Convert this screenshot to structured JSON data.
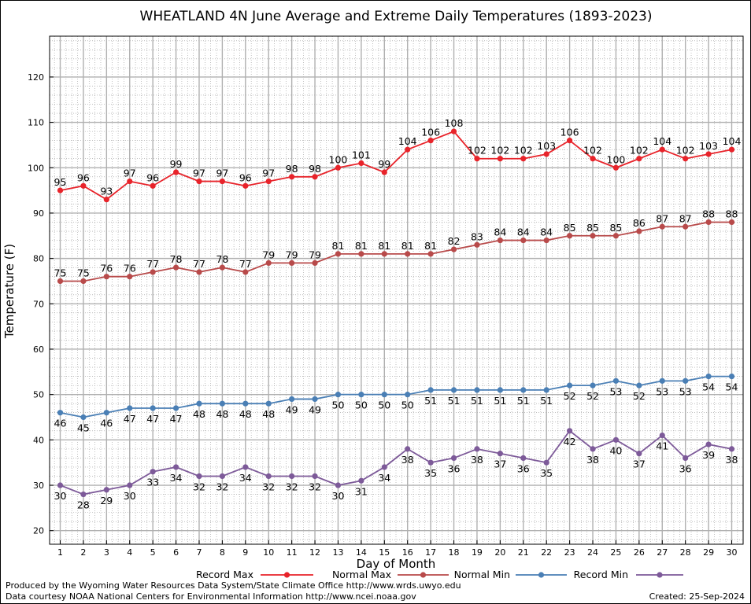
{
  "chart_data": {
    "type": "line",
    "title": "WHEATLAND 4N June Average and Extreme Daily Temperatures (1893-2023)",
    "xlabel": "Day of Month",
    "ylabel": "Temperature (F)",
    "ylim": [
      17,
      129
    ],
    "yticks": [
      20,
      30,
      40,
      50,
      60,
      70,
      80,
      90,
      100,
      110,
      120
    ],
    "x": [
      1,
      2,
      3,
      4,
      5,
      6,
      7,
      8,
      9,
      10,
      11,
      12,
      13,
      14,
      15,
      16,
      17,
      18,
      19,
      20,
      21,
      22,
      23,
      24,
      25,
      26,
      27,
      28,
      29,
      30
    ],
    "grid": true,
    "legend_position": "bottom",
    "series": [
      {
        "name": "Record Max",
        "color": "#e8232a",
        "label_position": "above",
        "values": [
          95,
          96,
          93,
          97,
          96,
          99,
          97,
          97,
          96,
          97,
          98,
          98,
          100,
          101,
          99,
          104,
          106,
          108,
          102,
          102,
          102,
          103,
          106,
          102,
          100,
          102,
          104,
          102,
          103,
          104
        ]
      },
      {
        "name": "Normal Max",
        "color": "#b84a4a",
        "label_position": "above",
        "values": [
          75,
          75,
          76,
          76,
          77,
          78,
          77,
          78,
          77,
          79,
          79,
          79,
          81,
          81,
          81,
          81,
          81,
          82,
          83,
          84,
          84,
          84,
          85,
          85,
          85,
          86,
          87,
          87,
          88,
          88
        ]
      },
      {
        "name": "Normal Min",
        "color": "#4a7fb5",
        "label_position": "below",
        "values": [
          46,
          45,
          46,
          47,
          47,
          47,
          48,
          48,
          48,
          48,
          49,
          49,
          50,
          50,
          50,
          50,
          51,
          51,
          51,
          51,
          51,
          51,
          52,
          52,
          53,
          52,
          53,
          53,
          54,
          54
        ]
      },
      {
        "name": "Record Min",
        "color": "#7d5a99",
        "label_position": "below",
        "values": [
          30,
          28,
          29,
          30,
          33,
          34,
          32,
          32,
          34,
          32,
          32,
          32,
          30,
          31,
          34,
          38,
          35,
          36,
          38,
          37,
          36,
          35,
          42,
          38,
          40,
          37,
          41,
          36,
          39,
          38
        ]
      }
    ]
  },
  "footer": {
    "produced_by": "Produced by the Wyoming Water Resources Data System/State Climate Office http://www.wrds.uwyo.edu",
    "courtesy": "Data courtesy NOAA National Centers for Environmental Information http://www.ncei.noaa.gov",
    "created": "Created:  25-Sep-2024"
  }
}
